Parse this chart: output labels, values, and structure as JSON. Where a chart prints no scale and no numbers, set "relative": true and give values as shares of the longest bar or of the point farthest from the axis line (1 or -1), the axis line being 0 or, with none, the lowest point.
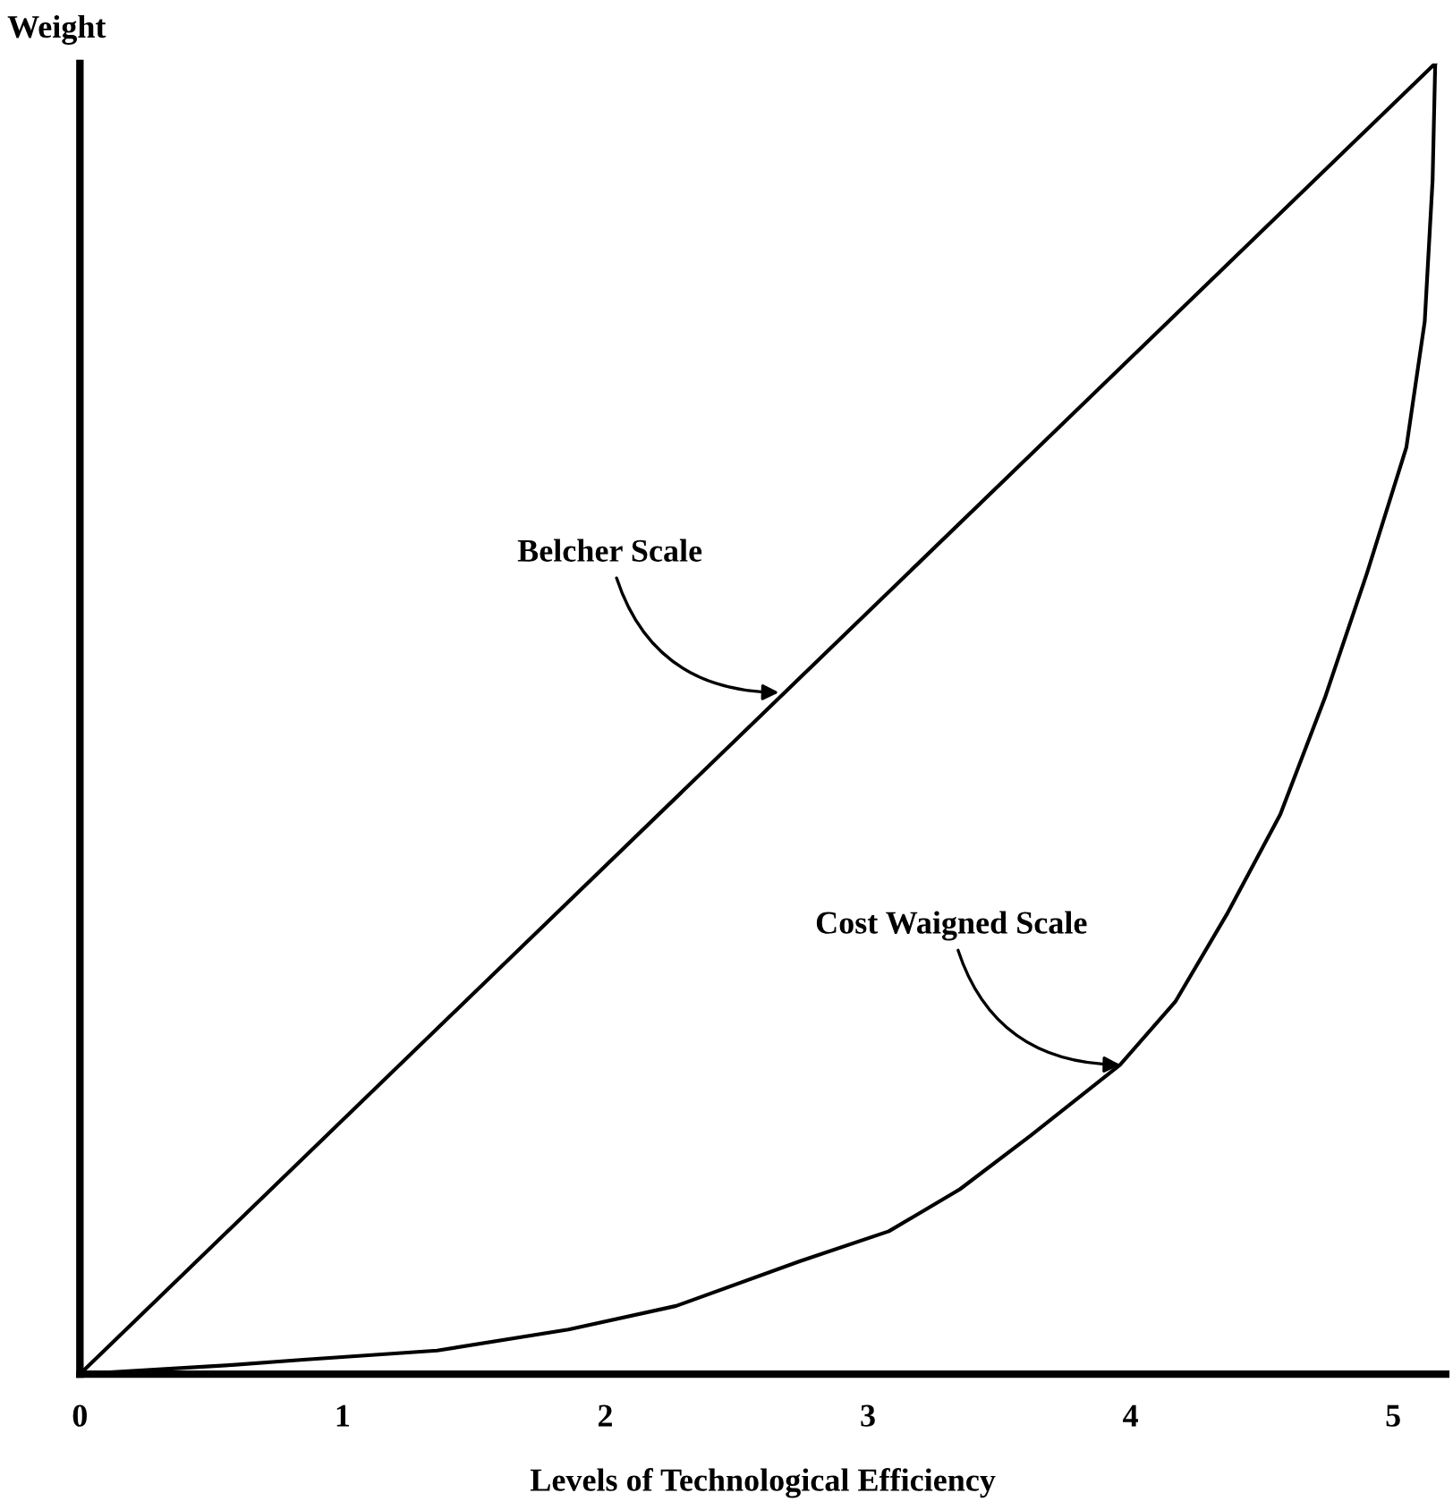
{
  "chart_data": {
    "type": "line",
    "relative": true,
    "ylabel": "Weight",
    "xlabel": "Levels of Technological Efficiency",
    "xlim": [
      0,
      5.2
    ],
    "xticks": [
      0,
      1,
      2,
      3,
      4,
      5
    ],
    "line_style": "solid",
    "series": [
      {
        "color": "#000000",
        "x": [
          0,
          5.16
        ],
        "values": [
          0,
          1.0
        ]
      },
      {
        "color": "#000000",
        "x": [
          0,
          0.58,
          0.85,
          1.36,
          1.86,
          2.27,
          2.74,
          3.08,
          3.35,
          3.62,
          3.96,
          4.17,
          4.37,
          4.57,
          4.74,
          4.9,
          5.05,
          5.12,
          5.15,
          5.16
        ],
        "values": [
          0,
          0.007,
          0.011,
          0.018,
          0.034,
          0.052,
          0.086,
          0.109,
          0.141,
          0.182,
          0.236,
          0.284,
          0.352,
          0.427,
          0.516,
          0.611,
          0.707,
          0.803,
          0.911,
          1.0
        ]
      }
    ],
    "annotations": [
      {
        "text": "Belcher Scale",
        "x": 2.68,
        "y": 0.52
      },
      {
        "text": "Cost Waigned Scale",
        "x": 3.98,
        "y": 0.236
      }
    ]
  }
}
